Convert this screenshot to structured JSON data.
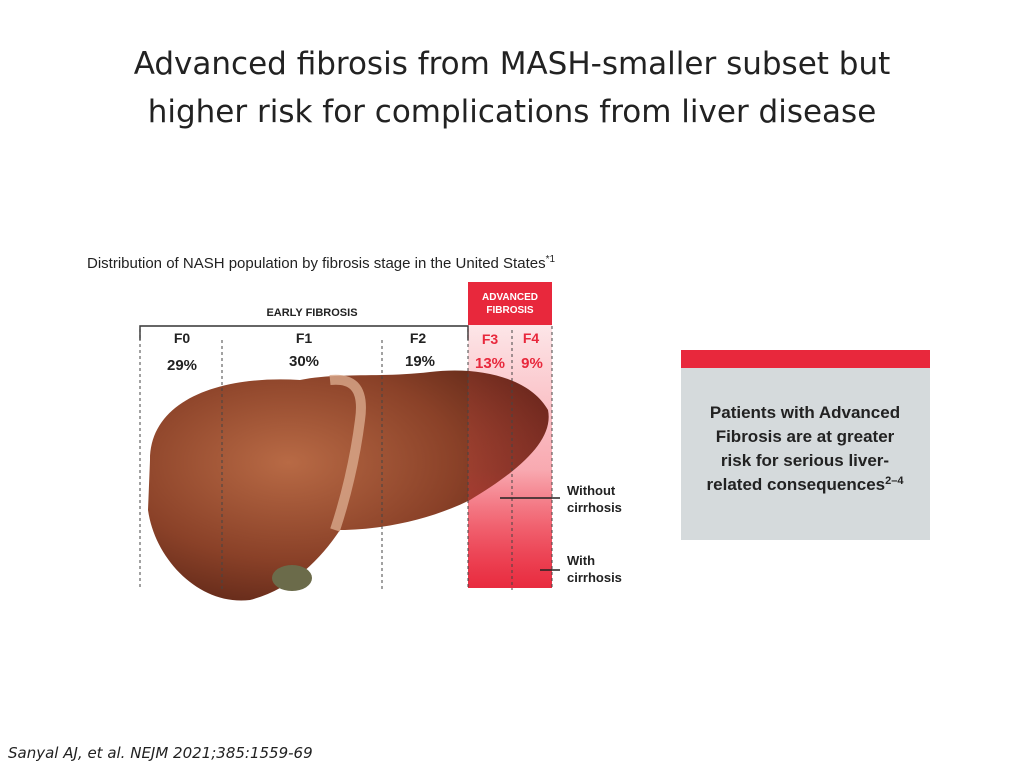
{
  "title": [
    "Advanced fibrosis from MASH-smaller subset but",
    "higher risk for complications from liver disease"
  ],
  "figure": {
    "caption": "Distribution of NASH population by fibrosis stage in the United States",
    "caption_note": "*1",
    "early_label": "EARLY FIBROSIS",
    "advanced_label": [
      "ADVANCED",
      "FIBROSIS"
    ],
    "stages": [
      {
        "label": "F0",
        "share": "29%"
      },
      {
        "label": "F1",
        "share": "30%"
      },
      {
        "label": "F2",
        "share": "19%"
      },
      {
        "label": "F3",
        "share": "13%"
      },
      {
        "label": "F4",
        "share": "9%"
      }
    ],
    "annotations": [
      [
        "Without",
        "cirrhosis"
      ],
      [
        "With",
        "cirrhosis"
      ]
    ]
  },
  "callout": {
    "lines": [
      "Patients with Advanced",
      "Fibrosis are at greater",
      "risk for serious liver-",
      "related consequences"
    ],
    "superscript": "2–4"
  },
  "citation": "Sanyal AJ, et al. NEJM 2021;385:1559-69"
}
